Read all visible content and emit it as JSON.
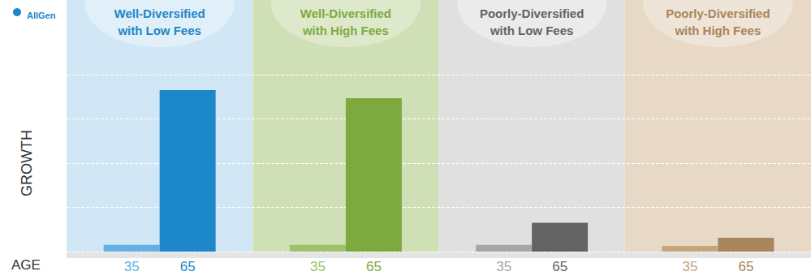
{
  "chart_data": {
    "type": "bar",
    "logo": "AllGen",
    "categories": [
      "Well-Diversified\nwith Low Fees",
      "Well-Diversified\nwith High Fees",
      "Poorly-Diversified\nwith Low Fees",
      "Poorly-Diversified\nwith High Fees"
    ],
    "x_label": "AGE",
    "y_label": "GROWTH",
    "series": [
      {
        "name": "35",
        "values": [
          0.15,
          0.15,
          0.15,
          0.13
        ],
        "colors": [
          "#62b1e0",
          "#9cc26b",
          "#a6a6a6",
          "#c6a47e"
        ]
      },
      {
        "name": "65",
        "values": [
          3.65,
          3.47,
          0.65,
          0.31
        ],
        "colors": [
          "#1c87c9",
          "#7da93e",
          "#636363",
          "#a9855b"
        ]
      }
    ],
    "ylim": [
      0,
      4
    ],
    "yticks": [
      0,
      1,
      2,
      3,
      4
    ],
    "grid": true,
    "tick_labels": false,
    "stacked": false
  }
}
